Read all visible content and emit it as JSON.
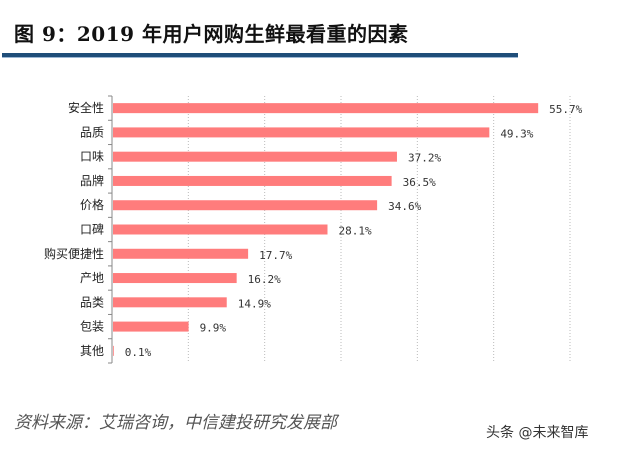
{
  "title": "图 9：2019 年用户网购生鲜最看重的因素",
  "source": "资料来源：艾瑞咨询，中信建投研究发展部",
  "watermark": "头条 @未来智库",
  "chart_data": {
    "type": "bar",
    "orientation": "horizontal",
    "categories": [
      "安全性",
      "品质",
      "口味",
      "品牌",
      "价格",
      "口碑",
      "购买便捷性",
      "产地",
      "品类",
      "包装",
      "其他"
    ],
    "values": [
      55.7,
      49.3,
      37.2,
      36.5,
      34.6,
      28.1,
      17.7,
      16.2,
      14.9,
      9.9,
      0.1
    ],
    "data_labels": [
      "55.7%",
      "49.3%",
      "37.2%",
      "36.5%",
      "34.6%",
      "28.1%",
      "17.7%",
      "16.2%",
      "14.9%",
      "9.9%",
      "0.1%"
    ],
    "xlim": [
      0,
      60
    ],
    "grid": "vertical dotted, every 10",
    "bar_color": "#ff7c7c"
  }
}
